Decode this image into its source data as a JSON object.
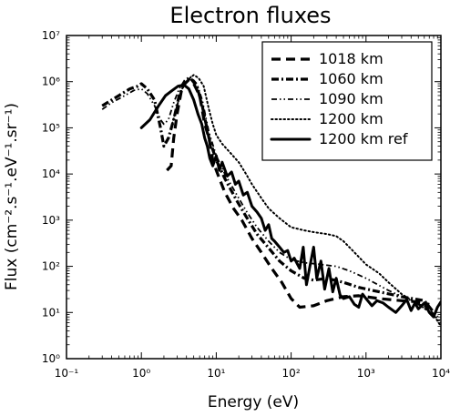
{
  "chart_data": {
    "type": "line",
    "title": "Electron fluxes",
    "xlabel": "Energy (eV)",
    "ylabel": "Flux (cm⁻².s⁻¹.eV⁻¹.sr⁻¹)",
    "xscale": "log",
    "yscale": "log",
    "xlim": [
      0.1,
      10000
    ],
    "ylim": [
      1,
      10000000
    ],
    "x_ticks": [
      "10⁻¹",
      "10⁰",
      "10¹",
      "10²",
      "10³",
      "10⁴"
    ],
    "y_ticks": [
      "10⁰",
      "10¹",
      "10²",
      "10³",
      "10⁴",
      "10⁵",
      "10⁶",
      "10⁷"
    ],
    "x_tick_values": [
      0.1,
      1,
      10,
      100,
      1000,
      10000
    ],
    "y_tick_values": [
      1,
      10,
      100,
      1000,
      10000,
      100000,
      1000000,
      10000000
    ],
    "grid": false,
    "legend_position": "top-right",
    "series": [
      {
        "name": "1018 km",
        "style": "dashed",
        "points": [
          [
            2.2,
            12000
          ],
          [
            2.5,
            15000
          ],
          [
            2.7,
            60000
          ],
          [
            3.0,
            200000
          ],
          [
            3.4,
            600000
          ],
          [
            3.8,
            900000
          ],
          [
            4.3,
            1100000
          ],
          [
            5.0,
            900000
          ],
          [
            6.0,
            500000
          ],
          [
            7.0,
            120000
          ],
          [
            8.0,
            60000
          ],
          [
            9.0,
            20000
          ],
          [
            10,
            12000
          ],
          [
            13,
            4000
          ],
          [
            17,
            1800
          ],
          [
            22,
            1000
          ],
          [
            30,
            400
          ],
          [
            40,
            200
          ],
          [
            55,
            90
          ],
          [
            75,
            45
          ],
          [
            100,
            20
          ],
          [
            130,
            13
          ],
          [
            200,
            14
          ],
          [
            300,
            18
          ],
          [
            500,
            22
          ],
          [
            800,
            23
          ],
          [
            1500,
            20
          ],
          [
            3000,
            18
          ],
          [
            5000,
            17
          ],
          [
            7000,
            15
          ]
        ]
      },
      {
        "name": "1060 km",
        "style": "dashdot",
        "points": [
          [
            0.3,
            300000
          ],
          [
            0.4,
            400000
          ],
          [
            0.5,
            500000
          ],
          [
            0.7,
            700000
          ],
          [
            0.9,
            800000
          ],
          [
            1.0,
            900000
          ],
          [
            1.2,
            700000
          ],
          [
            1.5,
            400000
          ],
          [
            1.8,
            100000
          ],
          [
            2.0,
            40000
          ],
          [
            2.3,
            60000
          ],
          [
            2.7,
            150000
          ],
          [
            3.2,
            500000
          ],
          [
            3.8,
            1000000
          ],
          [
            4.5,
            1200000
          ],
          [
            5.5,
            800000
          ],
          [
            6.5,
            300000
          ],
          [
            8,
            60000
          ],
          [
            10,
            20000
          ],
          [
            13,
            8000
          ],
          [
            18,
            3000
          ],
          [
            25,
            1200
          ],
          [
            35,
            500
          ],
          [
            50,
            250
          ],
          [
            70,
            130
          ],
          [
            100,
            80
          ],
          [
            150,
            55
          ],
          [
            200,
            50
          ],
          [
            300,
            55
          ],
          [
            500,
            45
          ],
          [
            800,
            35
          ],
          [
            1500,
            28
          ],
          [
            3000,
            22
          ],
          [
            6000,
            18
          ],
          [
            9000,
            8
          ]
        ]
      },
      {
        "name": "1090 km",
        "style": "dashdotdot",
        "points": [
          [
            0.3,
            250000
          ],
          [
            0.4,
            350000
          ],
          [
            0.6,
            500000
          ],
          [
            0.8,
            650000
          ],
          [
            1.0,
            700000
          ],
          [
            1.2,
            550000
          ],
          [
            1.5,
            300000
          ],
          [
            1.8,
            150000
          ],
          [
            2.0,
            120000
          ],
          [
            2.3,
            150000
          ],
          [
            2.7,
            350000
          ],
          [
            3.2,
            700000
          ],
          [
            3.8,
            1100000
          ],
          [
            4.5,
            1300000
          ],
          [
            5.5,
            900000
          ],
          [
            6.5,
            400000
          ],
          [
            8,
            80000
          ],
          [
            10,
            25000
          ],
          [
            13,
            10000
          ],
          [
            18,
            4000
          ],
          [
            25,
            1600
          ],
          [
            35,
            700
          ],
          [
            50,
            350
          ],
          [
            70,
            200
          ],
          [
            100,
            140
          ],
          [
            150,
            120
          ],
          [
            250,
            110
          ],
          [
            400,
            100
          ],
          [
            600,
            80
          ],
          [
            1000,
            55
          ],
          [
            2000,
            30
          ],
          [
            4000,
            18
          ],
          [
            7000,
            12
          ],
          [
            10000,
            6
          ]
        ]
      },
      {
        "name": "1200 km",
        "style": "dotted",
        "points": [
          [
            2.5,
            100000
          ],
          [
            3.0,
            300000
          ],
          [
            3.5,
            700000
          ],
          [
            4.2,
            1100000
          ],
          [
            5.0,
            1400000
          ],
          [
            5.8,
            1200000
          ],
          [
            6.8,
            800000
          ],
          [
            8,
            250000
          ],
          [
            9,
            120000
          ],
          [
            10,
            70000
          ],
          [
            12,
            45000
          ],
          [
            15,
            30000
          ],
          [
            20,
            18000
          ],
          [
            25,
            10000
          ],
          [
            30,
            6000
          ],
          [
            40,
            3000
          ],
          [
            50,
            1800
          ],
          [
            70,
            1100
          ],
          [
            100,
            700
          ],
          [
            150,
            600
          ],
          [
            200,
            550
          ],
          [
            300,
            500
          ],
          [
            400,
            450
          ],
          [
            500,
            350
          ],
          [
            700,
            200
          ],
          [
            1000,
            110
          ],
          [
            1500,
            70
          ],
          [
            2000,
            45
          ],
          [
            3000,
            25
          ],
          [
            5000,
            15
          ],
          [
            8000,
            9
          ],
          [
            10000,
            5
          ]
        ]
      },
      {
        "name": "1200 km ref",
        "style": "solid",
        "points": [
          [
            1.0,
            100000
          ],
          [
            1.3,
            150000
          ],
          [
            1.7,
            300000
          ],
          [
            2.1,
            500000
          ],
          [
            2.6,
            650000
          ],
          [
            3.1,
            800000
          ],
          [
            3.7,
            850000
          ],
          [
            4.3,
            700000
          ],
          [
            5.0,
            400000
          ],
          [
            5.7,
            200000
          ],
          [
            6.4,
            120000
          ],
          [
            7.0,
            60000
          ],
          [
            7.6,
            40000
          ],
          [
            8.2,
            22000
          ],
          [
            9.0,
            15000
          ],
          [
            10,
            25000
          ],
          [
            11,
            12000
          ],
          [
            12,
            18000
          ],
          [
            14,
            9000
          ],
          [
            16,
            11000
          ],
          [
            18,
            6000
          ],
          [
            20,
            7000
          ],
          [
            23,
            3500
          ],
          [
            26,
            4000
          ],
          [
            30,
            2000
          ],
          [
            35,
            1500
          ],
          [
            40,
            1100
          ],
          [
            45,
            600
          ],
          [
            50,
            800
          ],
          [
            55,
            400
          ],
          [
            60,
            350
          ],
          [
            70,
            260
          ],
          [
            80,
            200
          ],
          [
            90,
            220
          ],
          [
            100,
            130
          ],
          [
            110,
            150
          ],
          [
            130,
            90
          ],
          [
            145,
            260
          ],
          [
            160,
            40
          ],
          [
            180,
            110
          ],
          [
            200,
            260
          ],
          [
            220,
            55
          ],
          [
            250,
            130
          ],
          [
            280,
            32
          ],
          [
            320,
            90
          ],
          [
            360,
            28
          ],
          [
            400,
            55
          ],
          [
            450,
            24
          ],
          [
            500,
            20
          ],
          [
            600,
            22
          ],
          [
            700,
            15
          ],
          [
            800,
            13
          ],
          [
            900,
            25
          ],
          [
            1000,
            20
          ],
          [
            1200,
            14
          ],
          [
            1400,
            18
          ],
          [
            1700,
            16
          ],
          [
            2000,
            13
          ],
          [
            2500,
            10
          ],
          [
            3000,
            14
          ],
          [
            3500,
            19
          ],
          [
            4000,
            11
          ],
          [
            4500,
            16
          ],
          [
            5000,
            12
          ],
          [
            6000,
            16
          ],
          [
            7000,
            10
          ],
          [
            8000,
            8
          ],
          [
            9000,
            13
          ],
          [
            10000,
            17
          ]
        ]
      }
    ]
  }
}
